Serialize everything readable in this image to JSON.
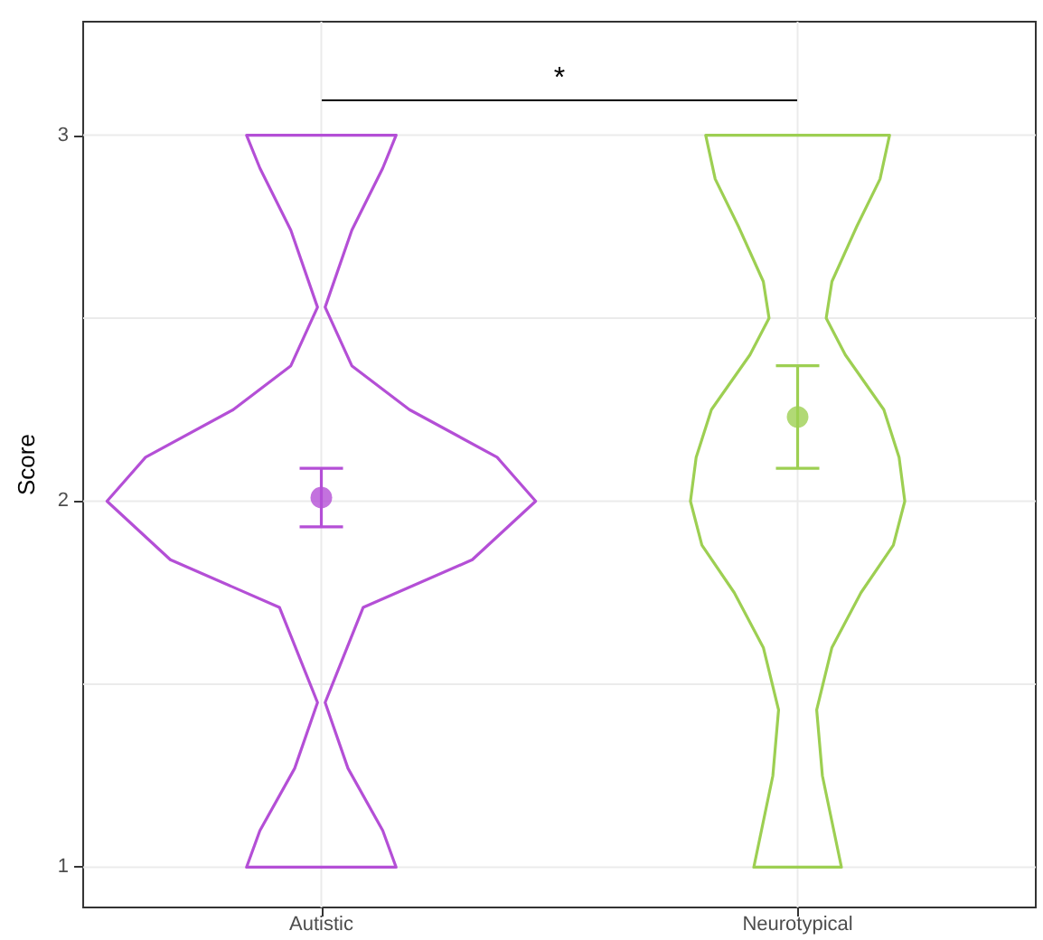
{
  "chart_data": {
    "type": "scatter",
    "ylabel": "Score",
    "categories": [
      "Autistic",
      "Neurotypical"
    ],
    "ylim": [
      0.89,
      3.31
    ],
    "yticks": [
      1,
      {
        "value": 1.5,
        "label": null
      },
      2,
      {
        "value": 2.5,
        "label": null
      },
      3
    ],
    "grid": true,
    "annotations": [
      "*"
    ],
    "series": [
      {
        "marker": "circle",
        "colors": [
          "#b44fd6",
          "#9dcf52"
        ],
        "values": [
          2.01,
          2.23
        ],
        "errors": [
          [
            1.93,
            2.09
          ],
          [
            2.09,
            2.37
          ]
        ]
      }
    ]
  }
}
